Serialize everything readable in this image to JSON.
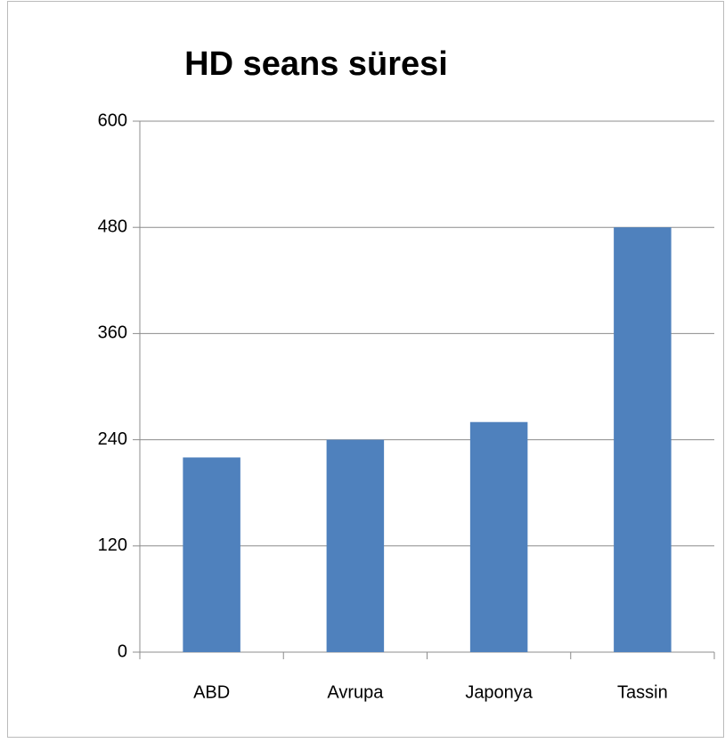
{
  "chart_data": {
    "type": "bar",
    "title": "HD seans süresi",
    "categories": [
      "ABD",
      "Avrupa",
      "Japonya",
      "Tassin"
    ],
    "values": [
      220,
      240,
      260,
      480
    ],
    "color": "#4f81bd",
    "ylim": [
      0,
      600
    ],
    "yticks": [
      0,
      120,
      240,
      360,
      480,
      600
    ],
    "grid": true
  }
}
